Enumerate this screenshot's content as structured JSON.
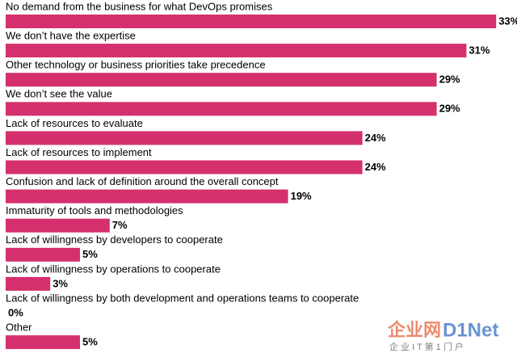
{
  "chart_data": {
    "type": "hbar",
    "categories": [
      "No demand from the business for what DevOps promises",
      "We don’t have the expertise",
      "Other technology or business priorities take precedence",
      "We don’t see the value",
      "Lack of resources to evaluate",
      "Lack of resources to implement",
      "Confusion and lack of definition around the overall concept",
      "Immaturity of tools and methodologies",
      "Lack of willingness by developers to cooperate",
      "Lack of willingness by operations to cooperate",
      "Lack of willingness by both development and operations teams to cooperate",
      "Other"
    ],
    "values": [
      33,
      31,
      29,
      29,
      24,
      24,
      19,
      7,
      5,
      3,
      0,
      5
    ],
    "value_labels": [
      "33%",
      "31%",
      "29%",
      "29%",
      "24%",
      "24%",
      "19%",
      "7%",
      "5%",
      "3%",
      "0%",
      "5%"
    ],
    "color": "#d4306d"
  },
  "watermark": {
    "logo": "企业网",
    "brand": "D1Net",
    "slogan": "企 业 I T 第 1 门 户"
  }
}
